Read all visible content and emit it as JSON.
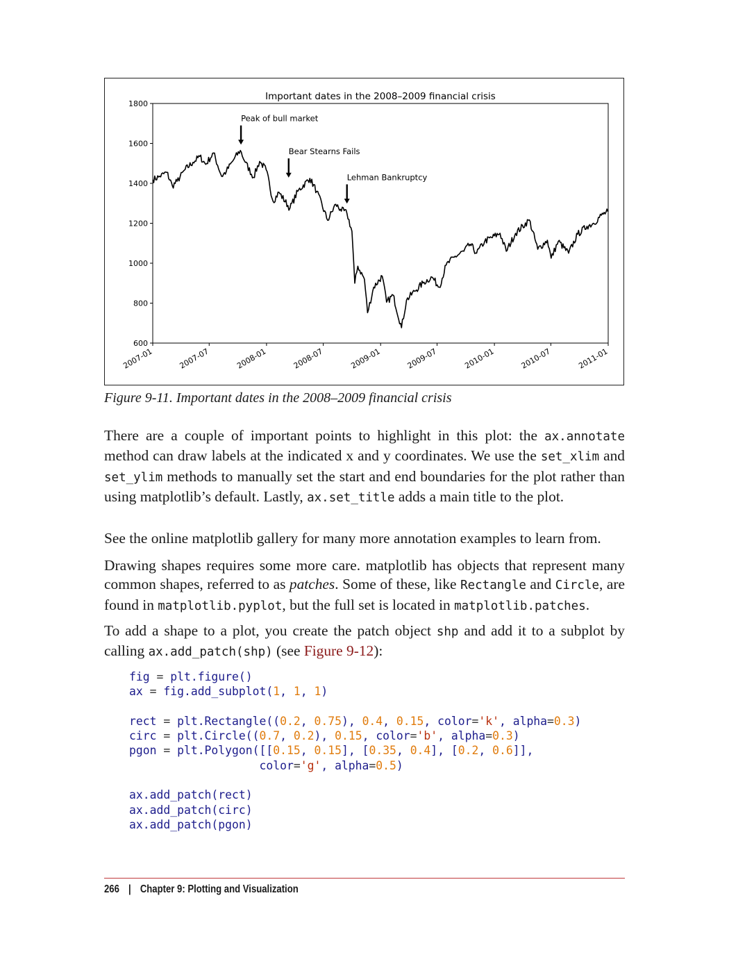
{
  "chart_data": {
    "type": "line",
    "title": "Important dates in the 2008–2009 financial crisis",
    "xlabel": "",
    "ylabel": "",
    "xlim": [
      "2007-01-01",
      "2011-01-01"
    ],
    "ylim": [
      600,
      1800
    ],
    "y_ticks": [
      600,
      800,
      1000,
      1200,
      1400,
      1600,
      1800
    ],
    "x_tick_labels": [
      "2007-01",
      "2007-07",
      "2008-01",
      "2008-07",
      "2009-01",
      "2009-07",
      "2010-01",
      "2010-07",
      "2011-01"
    ],
    "grid": false,
    "line_color": "#000000",
    "series": [
      {
        "values": [
          [
            "2007-01-01",
            1418
          ],
          [
            "2007-01-20",
            1432
          ],
          [
            "2007-02-15",
            1455
          ],
          [
            "2007-03-05",
            1387
          ],
          [
            "2007-03-20",
            1410
          ],
          [
            "2007-04-15",
            1470
          ],
          [
            "2007-05-10",
            1505
          ],
          [
            "2007-06-01",
            1535
          ],
          [
            "2007-06-20",
            1495
          ],
          [
            "2007-07-15",
            1552
          ],
          [
            "2007-08-10",
            1435
          ],
          [
            "2007-08-25",
            1460
          ],
          [
            "2007-09-20",
            1525
          ],
          [
            "2007-10-09",
            1565
          ],
          [
            "2007-10-25",
            1505
          ],
          [
            "2007-11-20",
            1430
          ],
          [
            "2007-12-10",
            1510
          ],
          [
            "2007-12-31",
            1468
          ],
          [
            "2008-01-22",
            1310
          ],
          [
            "2008-02-10",
            1355
          ],
          [
            "2008-03-16",
            1275
          ],
          [
            "2008-04-10",
            1360
          ],
          [
            "2008-05-19",
            1425
          ],
          [
            "2008-06-10",
            1360
          ],
          [
            "2008-07-15",
            1215
          ],
          [
            "2008-08-10",
            1295
          ],
          [
            "2008-08-25",
            1270
          ],
          [
            "2008-09-15",
            1250
          ],
          [
            "2008-10-01",
            1160
          ],
          [
            "2008-10-10",
            900
          ],
          [
            "2008-10-20",
            985
          ],
          [
            "2008-11-10",
            920
          ],
          [
            "2008-11-20",
            752
          ],
          [
            "2008-12-10",
            880
          ],
          [
            "2009-01-06",
            935
          ],
          [
            "2009-01-20",
            805
          ],
          [
            "2009-02-10",
            840
          ],
          [
            "2009-03-09",
            677
          ],
          [
            "2009-03-25",
            815
          ],
          [
            "2009-04-20",
            860
          ],
          [
            "2009-05-20",
            905
          ],
          [
            "2009-06-15",
            930
          ],
          [
            "2009-07-08",
            880
          ],
          [
            "2009-07-30",
            990
          ],
          [
            "2009-08-25",
            1030
          ],
          [
            "2009-09-25",
            1060
          ],
          [
            "2009-10-15",
            1095
          ],
          [
            "2009-11-05",
            1050
          ],
          [
            "2009-12-01",
            1110
          ],
          [
            "2010-01-19",
            1150
          ],
          [
            "2010-02-08",
            1060
          ],
          [
            "2010-03-10",
            1150
          ],
          [
            "2010-04-23",
            1217
          ],
          [
            "2010-05-20",
            1070
          ],
          [
            "2010-06-20",
            1115
          ],
          [
            "2010-07-02",
            1025
          ],
          [
            "2010-07-25",
            1110
          ],
          [
            "2010-08-27",
            1050
          ],
          [
            "2010-09-25",
            1145
          ],
          [
            "2010-10-25",
            1185
          ],
          [
            "2010-11-15",
            1200
          ],
          [
            "2010-12-10",
            1240
          ],
          [
            "2010-12-31",
            1258
          ]
        ]
      }
    ],
    "annotations": [
      {
        "label": "Peak of bull market",
        "date": "2007-10-11",
        "value": 1580
      },
      {
        "label": "Bear Stearns Fails",
        "date": "2008-03-12",
        "value": 1415
      },
      {
        "label": "Lehman Bankruptcy",
        "date": "2008-09-15",
        "value": 1285
      }
    ]
  },
  "caption": "Figure 9-11. Important dates in the 2008–2009 financial crisis",
  "para1": {
    "t1": "There are a couple of important points to highlight in this plot: the ",
    "c1": "ax.annotate",
    "t2": " method can draw labels at the indicated x and y coordinates. We use the ",
    "c2": "set_xlim",
    "t3": " and ",
    "c3": "set_ylim",
    "t4": " methods to manually set the start and end boundaries for the plot rather than using matplotlib’s default. Lastly, ",
    "c4": "ax.set_title",
    "t5": " adds a main title to the plot."
  },
  "para2": "See the online matplotlib gallery for many more annotation examples to learn from.",
  "para3": {
    "t1": "Drawing shapes requires some more care. matplotlib has objects that represent many common shapes, referred to as ",
    "em": "patches",
    "t2": ". Some of these, like ",
    "c1": "Rectangle",
    "t3": " and ",
    "c2": "Circle",
    "t4": ", are found in ",
    "c3": "matplotlib.pyplot",
    "t5": ", but the full set is located in ",
    "c4": "matplotlib.patches",
    "t6": "."
  },
  "para4": {
    "t1": "To add a shape to a plot, you create the patch object ",
    "c1": "shp",
    "t2": " and add it to a subplot by calling ",
    "c2": "ax.add_patch(shp)",
    "t3": " (see ",
    "link": "Figure 9-12",
    "t4": "):"
  },
  "code_lines": [
    "fig = plt.figure()",
    "ax = fig.add_subplot(1, 1, 1)",
    "",
    "rect = plt.Rectangle((0.2, 0.75), 0.4, 0.15, color='k', alpha=0.3)",
    "circ = plt.Circle((0.7, 0.2), 0.15, color='b', alpha=0.3)",
    "pgon = plt.Polygon([[0.15, 0.15], [0.35, 0.4], [0.2, 0.6]],",
    "                   color='g', alpha=0.5)",
    "",
    "ax.add_patch(rect)",
    "ax.add_patch(circ)",
    "ax.add_patch(pgon)"
  ],
  "footer": {
    "page_number": "266",
    "separator": "|",
    "chapter": "Chapter 9: Plotting and Visualization"
  }
}
